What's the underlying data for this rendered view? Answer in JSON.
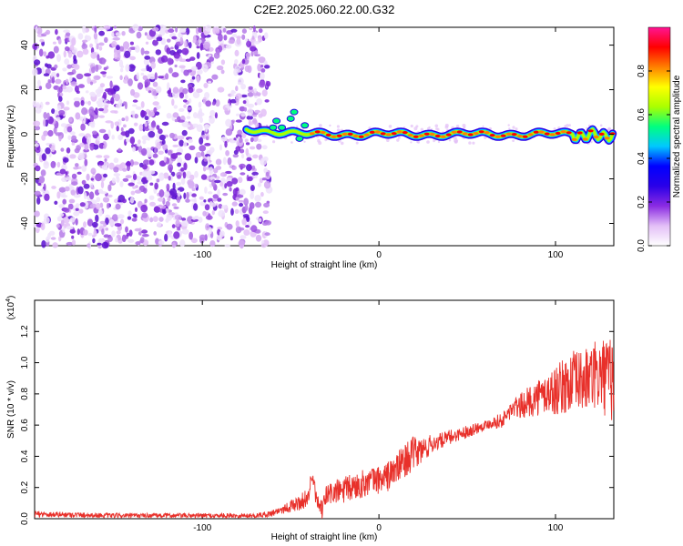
{
  "page_title": "C2E2.2025.060.22.00.G32",
  "chart_data": [
    {
      "type": "heatmap",
      "xlabel": "Height of straight line (km)",
      "ylabel": "Frequency (Hz)",
      "xlim": [
        -195,
        133
      ],
      "ylim": [
        -50,
        48
      ],
      "x_ticks": [
        -100,
        0,
        100
      ],
      "y_ticks": [
        -40,
        -20,
        0,
        20,
        40
      ],
      "noise_region_x": [
        -195,
        -62
      ],
      "signal_line_freq_hz": 0,
      "colorbar": {
        "label": "Normalized spectral amplitude",
        "range": [
          0,
          1
        ],
        "ticks": [
          "0.0",
          "0.2",
          "0.4",
          "0.6",
          "0.8"
        ],
        "colormap": [
          "#ffffff",
          "#e3bff7",
          "#8a2be2",
          "#2a00e8",
          "#0000ff",
          "#00c8ff",
          "#00ff80",
          "#aaff00",
          "#ffff00",
          "#ff8000",
          "#ff0000",
          "#ff1493"
        ]
      }
    },
    {
      "type": "line",
      "xlabel": "Height of straight line (km)",
      "ylabel": "SNR (10 * v/v)",
      "y_multiplier": "(x10",
      "y_multiplier_exp": "4",
      "xlim": [
        -195,
        133
      ],
      "ylim": [
        0,
        1.4
      ],
      "x_ticks": [
        -100,
        0,
        100
      ],
      "y_ticks": [
        "0.0",
        "0.2",
        "0.4",
        "0.6",
        "0.8",
        "1.0",
        "1.2"
      ],
      "color": "#e8302a",
      "series": [
        {
          "x": [
            -195,
            -150,
            -100,
            -70,
            -62,
            -55,
            -50,
            -45,
            -40,
            -38,
            -35,
            -32,
            -30,
            -25,
            -20,
            -15,
            -10,
            -5,
            0,
            5,
            10,
            15,
            20,
            25,
            30,
            35,
            40,
            45,
            50,
            55,
            60,
            65,
            70,
            75,
            80,
            85,
            90,
            95,
            100,
            105,
            110,
            115,
            120,
            125,
            130,
            133
          ],
          "y": [
            0.03,
            0.02,
            0.02,
            0.02,
            0.03,
            0.06,
            0.08,
            0.1,
            0.14,
            0.28,
            0.1,
            0.05,
            0.15,
            0.17,
            0.18,
            0.2,
            0.22,
            0.24,
            0.25,
            0.27,
            0.32,
            0.38,
            0.42,
            0.44,
            0.48,
            0.5,
            0.52,
            0.54,
            0.56,
            0.58,
            0.6,
            0.62,
            0.63,
            0.7,
            0.72,
            0.75,
            0.78,
            0.8,
            0.82,
            0.85,
            0.88,
            0.88,
            0.9,
            0.92,
            0.9,
            0.88
          ],
          "noise_amplitude": [
            0.02,
            0.015,
            0.015,
            0.015,
            0.02,
            0.03,
            0.04,
            0.05,
            0.06,
            0.06,
            0.05,
            0.06,
            0.08,
            0.08,
            0.09,
            0.09,
            0.09,
            0.09,
            0.09,
            0.1,
            0.1,
            0.11,
            0.11,
            0.09,
            0.06,
            0.05,
            0.05,
            0.04,
            0.04,
            0.04,
            0.03,
            0.04,
            0.05,
            0.06,
            0.08,
            0.1,
            0.12,
            0.14,
            0.16,
            0.18,
            0.2,
            0.2,
            0.22,
            0.24,
            0.26,
            0.28
          ]
        }
      ]
    }
  ]
}
